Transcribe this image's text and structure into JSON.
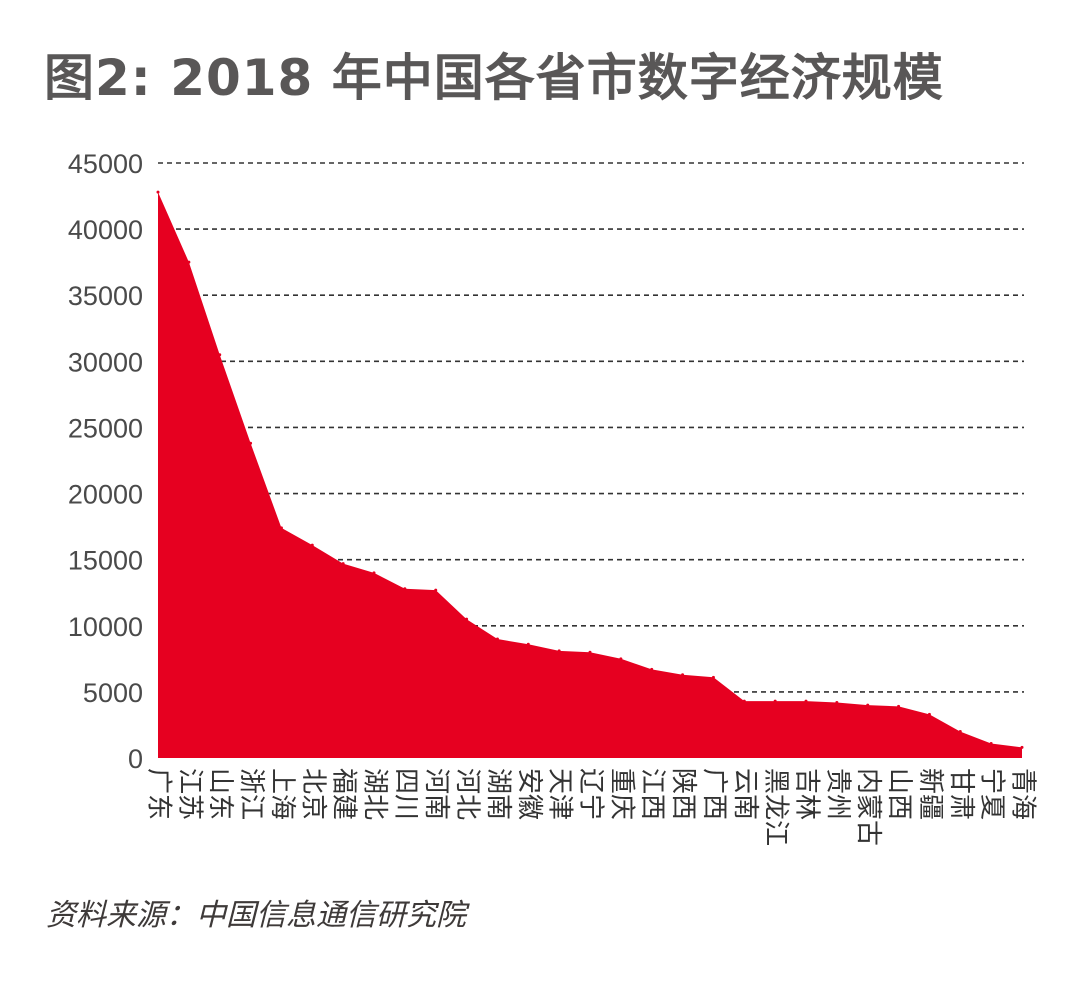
{
  "title": "图2: 2018 年中国各省市数字经济规模",
  "source": "资料来源：中国信息通信研究院",
  "colors": {
    "area": "#e60020",
    "grid": "#333333",
    "title": "#595757"
  },
  "chart_data": {
    "type": "area",
    "title": "图2: 2018 年中国各省市数字经济规模",
    "xlabel": "",
    "ylabel": "",
    "ylim": [
      0,
      45000
    ],
    "yticks": [
      0,
      5000,
      10000,
      15000,
      20000,
      25000,
      30000,
      35000,
      40000,
      45000
    ],
    "grid": "horizontal-dashed",
    "categories": [
      "广东",
      "江苏",
      "山东",
      "浙江",
      "上海",
      "北京",
      "福建",
      "湖北",
      "四川",
      "河南",
      "河北",
      "湖南",
      "安徽",
      "天津",
      "辽宁",
      "重庆",
      "江西",
      "陕西",
      "广西",
      "云南",
      "黑龙江",
      "吉林",
      "贵州",
      "内蒙古",
      "山西",
      "新疆",
      "甘肃",
      "宁夏",
      "青海"
    ],
    "values": [
      42800,
      37500,
      30500,
      23800,
      17400,
      16100,
      14700,
      14000,
      12800,
      12700,
      10500,
      9000,
      8600,
      8100,
      8000,
      7500,
      6700,
      6300,
      6100,
      4300,
      4300,
      4300,
      4200,
      4000,
      3900,
      3300,
      2000,
      1100,
      800
    ]
  }
}
